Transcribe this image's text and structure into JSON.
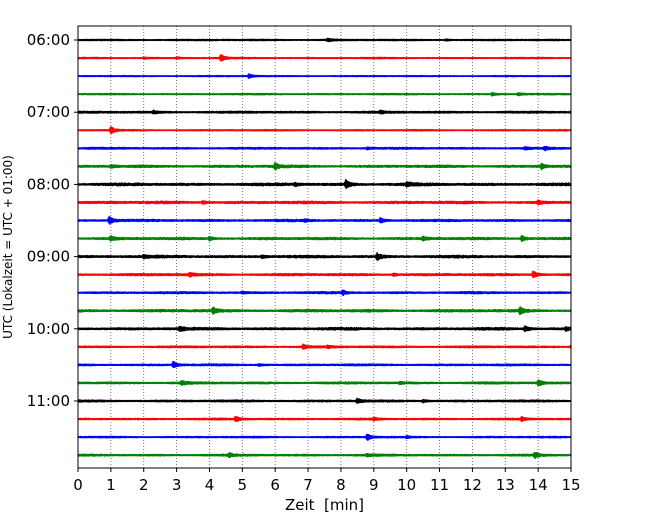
{
  "chart_data": {
    "type": "line",
    "title": "",
    "xlabel": "Zeit  [min]",
    "ylabel": "UTC (Lokalzeit = UTC + 01:00)",
    "xlim": [
      0,
      15
    ],
    "x_ticks": [
      "0",
      "1",
      "2",
      "3",
      "4",
      "5",
      "6",
      "7",
      "8",
      "9",
      "10",
      "11",
      "12",
      "13",
      "14",
      "15"
    ],
    "y_tick_labels": [
      "06:00",
      "07:00",
      "08:00",
      "09:00",
      "10:00",
      "11:00"
    ],
    "y_tick_hours": [
      6,
      7,
      8,
      9,
      10,
      11
    ],
    "grid": "vertical-dotted",
    "trace_interval_minutes": 15,
    "series_colors": [
      "#000000",
      "#ff0000",
      "#0000ff",
      "#008000"
    ],
    "traces": [
      {
        "start": "06:00",
        "color": "#000000",
        "amplitude": 0.7,
        "events": [
          {
            "t": 7.6,
            "a": 1.6
          },
          {
            "t": 11.2,
            "a": 0.9
          }
        ]
      },
      {
        "start": "06:15",
        "color": "#ff0000",
        "amplitude": 0.6,
        "events": [
          {
            "t": 2.0,
            "a": 1.0
          },
          {
            "t": 4.35,
            "a": 3.6
          },
          {
            "t": 3.0,
            "a": 1.0
          }
        ]
      },
      {
        "start": "06:30",
        "color": "#0000ff",
        "amplitude": 0.5,
        "events": [
          {
            "t": 5.2,
            "a": 2.2
          }
        ]
      },
      {
        "start": "06:45",
        "color": "#008000",
        "amplitude": 0.6,
        "events": [
          {
            "t": 12.6,
            "a": 1.6
          },
          {
            "t": 13.4,
            "a": 1.4
          }
        ]
      },
      {
        "start": "07:00",
        "color": "#000000",
        "amplitude": 1.0,
        "events": [
          {
            "t": 2.3,
            "a": 1.6
          },
          {
            "t": 9.2,
            "a": 1.4
          }
        ]
      },
      {
        "start": "07:15",
        "color": "#ff0000",
        "amplitude": 0.6,
        "events": [
          {
            "t": 1.0,
            "a": 3.6
          }
        ]
      },
      {
        "start": "07:30",
        "color": "#0000ff",
        "amplitude": 0.9,
        "events": [
          {
            "t": 8.8,
            "a": 1.2
          },
          {
            "t": 13.6,
            "a": 1.6
          },
          {
            "t": 14.2,
            "a": 1.8
          }
        ]
      },
      {
        "start": "07:45",
        "color": "#008000",
        "amplitude": 1.2,
        "events": [
          {
            "t": 6.0,
            "a": 3.2
          },
          {
            "t": 14.1,
            "a": 2.6
          },
          {
            "t": 1.0,
            "a": 1.4
          }
        ]
      },
      {
        "start": "08:00",
        "color": "#000000",
        "amplitude": 1.4,
        "events": [
          {
            "t": 8.15,
            "a": 4.2
          },
          {
            "t": 10.0,
            "a": 2.2
          },
          {
            "t": 6.6,
            "a": 1.4
          }
        ]
      },
      {
        "start": "08:15",
        "color": "#ff0000",
        "amplitude": 1.3,
        "events": [
          {
            "t": 3.8,
            "a": 1.6
          },
          {
            "t": 14.0,
            "a": 1.6
          }
        ]
      },
      {
        "start": "08:30",
        "color": "#0000ff",
        "amplitude": 1.1,
        "events": [
          {
            "t": 0.95,
            "a": 3.8
          },
          {
            "t": 9.2,
            "a": 2.6
          },
          {
            "t": 6.9,
            "a": 1.3
          }
        ]
      },
      {
        "start": "08:45",
        "color": "#008000",
        "amplitude": 1.2,
        "events": [
          {
            "t": 1.0,
            "a": 2.2
          },
          {
            "t": 4.0,
            "a": 2.0
          },
          {
            "t": 13.5,
            "a": 2.8
          },
          {
            "t": 10.5,
            "a": 1.6
          }
        ]
      },
      {
        "start": "09:00",
        "color": "#000000",
        "amplitude": 1.3,
        "events": [
          {
            "t": 9.1,
            "a": 3.4
          },
          {
            "t": 5.6,
            "a": 1.6
          },
          {
            "t": 2.0,
            "a": 1.4
          }
        ]
      },
      {
        "start": "09:15",
        "color": "#ff0000",
        "amplitude": 1.2,
        "events": [
          {
            "t": 3.4,
            "a": 1.8
          },
          {
            "t": 13.85,
            "a": 3.6
          },
          {
            "t": 9.6,
            "a": 1.5
          }
        ]
      },
      {
        "start": "09:30",
        "color": "#0000ff",
        "amplitude": 1.0,
        "events": [
          {
            "t": 8.05,
            "a": 2.4
          },
          {
            "t": 5.0,
            "a": 1.2
          }
        ]
      },
      {
        "start": "09:45",
        "color": "#008000",
        "amplitude": 1.3,
        "events": [
          {
            "t": 4.1,
            "a": 3.2
          },
          {
            "t": 13.45,
            "a": 3.8
          }
        ]
      },
      {
        "start": "10:00",
        "color": "#000000",
        "amplitude": 1.3,
        "events": [
          {
            "t": 3.1,
            "a": 2.4
          },
          {
            "t": 13.6,
            "a": 2.8
          },
          {
            "t": 14.85,
            "a": 1.8
          }
        ]
      },
      {
        "start": "10:15",
        "color": "#ff0000",
        "amplitude": 0.9,
        "events": [
          {
            "t": 6.85,
            "a": 2.4
          },
          {
            "t": 15.0,
            "a": 1.6
          },
          {
            "t": 7.6,
            "a": 1.2
          }
        ]
      },
      {
        "start": "10:30",
        "color": "#0000ff",
        "amplitude": 0.9,
        "events": [
          {
            "t": 2.9,
            "a": 3.2
          },
          {
            "t": 5.5,
            "a": 1.2
          }
        ]
      },
      {
        "start": "10:45",
        "color": "#008000",
        "amplitude": 1.0,
        "events": [
          {
            "t": 3.15,
            "a": 2.2
          },
          {
            "t": 14.0,
            "a": 3.2
          },
          {
            "t": 9.8,
            "a": 1.2
          }
        ]
      },
      {
        "start": "11:00",
        "color": "#000000",
        "amplitude": 1.0,
        "events": [
          {
            "t": 8.5,
            "a": 2.6
          },
          {
            "t": 10.5,
            "a": 1.4
          }
        ]
      },
      {
        "start": "11:15",
        "color": "#ff0000",
        "amplitude": 0.8,
        "events": [
          {
            "t": 4.8,
            "a": 2.6
          },
          {
            "t": 13.5,
            "a": 2.2
          },
          {
            "t": 9.0,
            "a": 1.4
          }
        ]
      },
      {
        "start": "11:30",
        "color": "#0000ff",
        "amplitude": 0.7,
        "events": [
          {
            "t": 8.8,
            "a": 3.4
          },
          {
            "t": 10.0,
            "a": 1.2
          }
        ]
      },
      {
        "start": "11:45",
        "color": "#008000",
        "amplitude": 0.9,
        "events": [
          {
            "t": 4.6,
            "a": 1.8
          },
          {
            "t": 13.9,
            "a": 3.0
          },
          {
            "t": 8.8,
            "a": 1.4
          }
        ]
      }
    ]
  }
}
